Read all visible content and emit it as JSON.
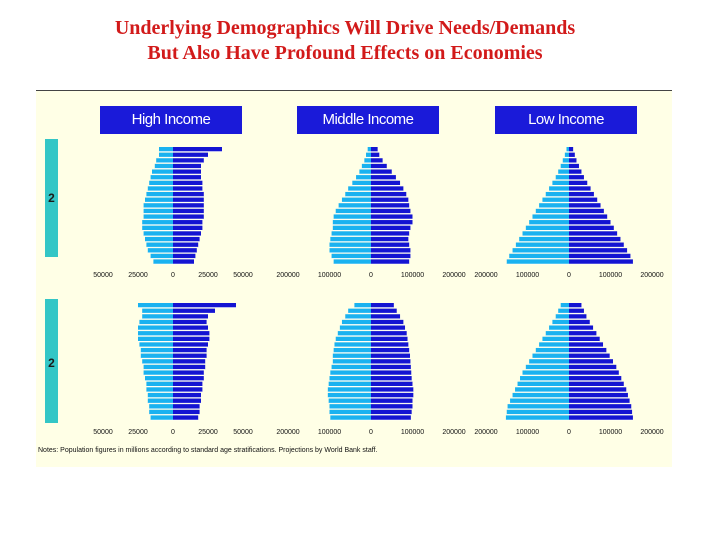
{
  "title_line1": "Underlying Demographics Will Drive Needs/Demands",
  "title_line2": "But Also Have Profound Effects on Economies",
  "headers": [
    "High Income",
    "Middle Income",
    "Low Income"
  ],
  "row_labels": [
    "2",
    "2"
  ],
  "note": "Notes: Population figures in millions according to standard age stratifications. Projections by World Bank staff.",
  "colors": {
    "male": "#1ab2f0",
    "female": "#1414d2",
    "header_bg": "#1a1ad9",
    "year_bar": "#33c6c6",
    "title": "#d21a1a",
    "panel_bg": "#ffffe6"
  },
  "chart_data": [
    {
      "type": "bar",
      "orientation": "population-pyramid",
      "group": "High Income",
      "row": 1,
      "axis_ticks": [
        "50000",
        "25000",
        "0",
        "25000",
        "50000"
      ],
      "xlim": [
        -50000,
        50000
      ],
      "male": [
        10000,
        10000,
        12000,
        13000,
        15000,
        16000,
        17000,
        18000,
        19000,
        20000,
        21000,
        21000,
        21000,
        22000,
        22000,
        21000,
        20000,
        19000,
        18000,
        16000,
        14000
      ],
      "female": [
        35000,
        25000,
        22000,
        20000,
        20000,
        20000,
        21000,
        21000,
        22000,
        22000,
        22000,
        22000,
        22000,
        21000,
        21000,
        20000,
        19000,
        18000,
        17000,
        16000,
        15000
      ]
    },
    {
      "type": "bar",
      "orientation": "population-pyramid",
      "group": "Middle Income",
      "row": 1,
      "axis_ticks": [
        "200000",
        "100000",
        "0",
        "100000",
        "200000"
      ],
      "xlim": [
        -200000,
        200000
      ],
      "male": [
        8000,
        12000,
        16000,
        22000,
        28000,
        36000,
        45000,
        55000,
        62000,
        70000,
        78000,
        85000,
        90000,
        92000,
        92000,
        95000,
        98000,
        100000,
        100000,
        95000,
        90000
      ],
      "female": [
        16000,
        20000,
        28000,
        38000,
        50000,
        60000,
        70000,
        78000,
        85000,
        90000,
        92000,
        95000,
        100000,
        100000,
        95000,
        92000,
        90000,
        92000,
        95000,
        95000,
        92000
      ]
    },
    {
      "type": "bar",
      "orientation": "population-pyramid",
      "group": "Low Income",
      "row": 1,
      "axis_ticks": [
        "200000",
        "100000",
        "0",
        "100000",
        "200000"
      ],
      "xlim": [
        -200000,
        200000
      ],
      "male": [
        6000,
        10000,
        15000,
        20000,
        26000,
        32000,
        40000,
        48000,
        56000,
        64000,
        72000,
        80000,
        88000,
        96000,
        104000,
        112000,
        120000,
        128000,
        136000,
        144000,
        150000
      ],
      "female": [
        10000,
        14000,
        18000,
        24000,
        30000,
        36000,
        44000,
        52000,
        60000,
        68000,
        76000,
        84000,
        92000,
        100000,
        108000,
        116000,
        124000,
        132000,
        140000,
        148000,
        154000
      ]
    },
    {
      "type": "bar",
      "orientation": "population-pyramid",
      "group": "High Income",
      "row": 2,
      "axis_ticks": [
        "50000",
        "25000",
        "0",
        "25000",
        "50000"
      ],
      "xlim": [
        -50000,
        50000
      ],
      "male": [
        25000,
        22000,
        22000,
        24000,
        25000,
        25000,
        25000,
        24000,
        23000,
        23000,
        22000,
        21000,
        21000,
        20000,
        19000,
        19000,
        18000,
        18000,
        17000,
        17000,
        16000
      ],
      "female": [
        45000,
        30000,
        25000,
        24000,
        25000,
        26000,
        26000,
        25000,
        24000,
        24000,
        23000,
        23000,
        22000,
        22000,
        21000,
        21000,
        20000,
        20000,
        19000,
        19000,
        18000
      ]
    },
    {
      "type": "bar",
      "orientation": "population-pyramid",
      "group": "Middle Income",
      "row": 2,
      "axis_ticks": [
        "200000",
        "100000",
        "0",
        "100000",
        "200000"
      ],
      "xlim": [
        -200000,
        200000
      ],
      "male": [
        40000,
        55000,
        62000,
        70000,
        75000,
        80000,
        85000,
        88000,
        90000,
        92000,
        92000,
        95000,
        98000,
        100000,
        102000,
        104000,
        104000,
        102000,
        100000,
        100000,
        98000
      ],
      "female": [
        55000,
        62000,
        70000,
        78000,
        82000,
        86000,
        88000,
        90000,
        92000,
        94000,
        95000,
        96000,
        97000,
        98000,
        100000,
        102000,
        102000,
        100000,
        100000,
        98000,
        96000
      ]
    },
    {
      "type": "bar",
      "orientation": "population-pyramid",
      "group": "Low Income",
      "row": 2,
      "axis_ticks": [
        "200000",
        "100000",
        "0",
        "100000",
        "200000"
      ],
      "xlim": [
        -200000,
        200000
      ],
      "male": [
        20000,
        26000,
        32000,
        40000,
        48000,
        56000,
        64000,
        72000,
        80000,
        88000,
        96000,
        104000,
        112000,
        118000,
        124000,
        130000,
        136000,
        142000,
        148000,
        150000,
        152000
      ],
      "female": [
        30000,
        36000,
        42000,
        50000,
        58000,
        66000,
        74000,
        82000,
        90000,
        98000,
        106000,
        114000,
        120000,
        126000,
        132000,
        138000,
        142000,
        146000,
        150000,
        152000,
        154000
      ]
    }
  ]
}
